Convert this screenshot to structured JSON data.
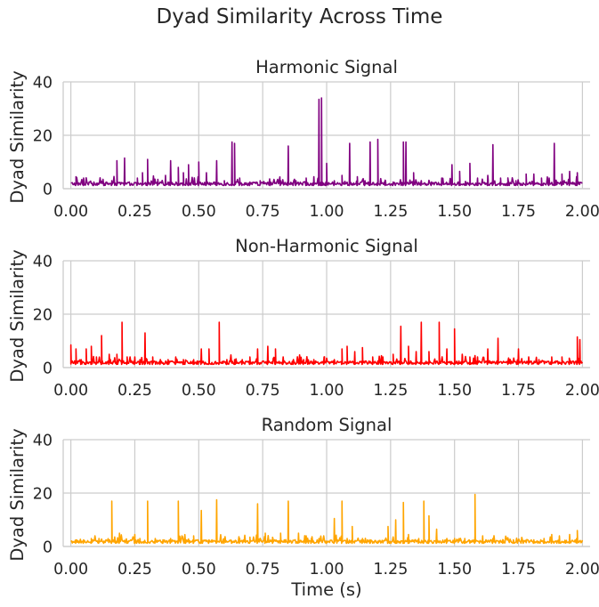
{
  "figure": {
    "title": "Dyad Similarity Across Time"
  },
  "chart_data": [
    {
      "type": "line",
      "title": "Harmonic Signal",
      "xlabel": "",
      "ylabel": "Dyad Similarity",
      "color": "#800080",
      "xlim": [
        -0.03,
        2.03
      ],
      "ylim": [
        0,
        40
      ],
      "xticks": [
        0.0,
        0.25,
        0.5,
        0.75,
        1.0,
        1.25,
        1.5,
        1.75,
        2.0
      ],
      "xtick_labels": [
        "0.00",
        "0.25",
        "0.50",
        "0.75",
        "1.00",
        "1.25",
        "1.50",
        "1.75",
        "2.00"
      ],
      "yticks": [
        0,
        20,
        40
      ],
      "ytick_labels": [
        "0",
        "20",
        "40"
      ],
      "grid": true,
      "baseline": 1.2,
      "peaks": [
        [
          0.02,
          4.5
        ],
        [
          0.05,
          4.0
        ],
        [
          0.09,
          2.5
        ],
        [
          0.13,
          2.0
        ],
        [
          0.16,
          3.0
        ],
        [
          0.18,
          10.5
        ],
        [
          0.21,
          11.5
        ],
        [
          0.26,
          4.0
        ],
        [
          0.28,
          6.0
        ],
        [
          0.3,
          11.0
        ],
        [
          0.34,
          3.5
        ],
        [
          0.37,
          5.0
        ],
        [
          0.39,
          10.5
        ],
        [
          0.42,
          8.0
        ],
        [
          0.44,
          6.0
        ],
        [
          0.46,
          9.0
        ],
        [
          0.5,
          10.0
        ],
        [
          0.53,
          6.0
        ],
        [
          0.57,
          10.5
        ],
        [
          0.6,
          3.0
        ],
        [
          0.63,
          17.5
        ],
        [
          0.64,
          17.0
        ],
        [
          0.66,
          4.0
        ],
        [
          0.7,
          2.5
        ],
        [
          0.74,
          3.0
        ],
        [
          0.78,
          2.5
        ],
        [
          0.82,
          3.0
        ],
        [
          0.85,
          16.0
        ],
        [
          0.88,
          3.0
        ],
        [
          0.92,
          4.0
        ],
        [
          0.95,
          4.5
        ],
        [
          0.97,
          33.5
        ],
        [
          0.98,
          34.0
        ],
        [
          1.0,
          9.5
        ],
        [
          1.03,
          3.0
        ],
        [
          1.06,
          5.0
        ],
        [
          1.09,
          17.0
        ],
        [
          1.12,
          4.5
        ],
        [
          1.15,
          3.0
        ],
        [
          1.17,
          17.5
        ],
        [
          1.2,
          18.5
        ],
        [
          1.23,
          3.0
        ],
        [
          1.26,
          2.0
        ],
        [
          1.3,
          17.5
        ],
        [
          1.31,
          17.5
        ],
        [
          1.34,
          6.0
        ],
        [
          1.37,
          3.0
        ],
        [
          1.41,
          2.5
        ],
        [
          1.45,
          4.0
        ],
        [
          1.49,
          9.0
        ],
        [
          1.52,
          6.5
        ],
        [
          1.56,
          9.5
        ],
        [
          1.59,
          4.0
        ],
        [
          1.63,
          5.0
        ],
        [
          1.65,
          16.5
        ],
        [
          1.68,
          4.0
        ],
        [
          1.71,
          3.0
        ],
        [
          1.74,
          3.0
        ],
        [
          1.78,
          5.5
        ],
        [
          1.81,
          5.5
        ],
        [
          1.84,
          4.0
        ],
        [
          1.87,
          4.0
        ],
        [
          1.89,
          17.0
        ],
        [
          1.92,
          5.5
        ],
        [
          1.95,
          6.5
        ],
        [
          1.98,
          6.0
        ]
      ]
    },
    {
      "type": "line",
      "title": "Non-Harmonic Signal",
      "xlabel": "",
      "ylabel": "Dyad Similarity",
      "color": "#ff0000",
      "xlim": [
        -0.03,
        2.03
      ],
      "ylim": [
        0,
        40
      ],
      "xticks": [
        0.0,
        0.25,
        0.5,
        0.75,
        1.0,
        1.25,
        1.5,
        1.75,
        2.0
      ],
      "xtick_labels": [
        "0.00",
        "0.25",
        "0.50",
        "0.75",
        "1.00",
        "1.25",
        "1.50",
        "1.75",
        "2.00"
      ],
      "yticks": [
        0,
        20,
        40
      ],
      "ytick_labels": [
        "0",
        "20",
        "40"
      ],
      "grid": true,
      "baseline": 1.2,
      "peaks": [
        [
          0.0,
          8.5
        ],
        [
          0.02,
          7.0
        ],
        [
          0.04,
          3.0
        ],
        [
          0.06,
          7.0
        ],
        [
          0.08,
          8.0
        ],
        [
          0.1,
          4.0
        ],
        [
          0.12,
          12.0
        ],
        [
          0.15,
          5.0
        ],
        [
          0.18,
          5.0
        ],
        [
          0.2,
          17.0
        ],
        [
          0.22,
          4.0
        ],
        [
          0.25,
          4.0
        ],
        [
          0.27,
          3.0
        ],
        [
          0.29,
          13.0
        ],
        [
          0.32,
          4.0
        ],
        [
          0.35,
          3.0
        ],
        [
          0.38,
          3.0
        ],
        [
          0.41,
          4.0
        ],
        [
          0.44,
          3.0
        ],
        [
          0.48,
          3.0
        ],
        [
          0.51,
          7.0
        ],
        [
          0.54,
          7.0
        ],
        [
          0.58,
          17.0
        ],
        [
          0.61,
          3.0
        ],
        [
          0.64,
          3.0
        ],
        [
          0.67,
          3.0
        ],
        [
          0.7,
          4.0
        ],
        [
          0.73,
          7.0
        ],
        [
          0.77,
          8.0
        ],
        [
          0.8,
          7.0
        ],
        [
          0.83,
          4.0
        ],
        [
          0.87,
          3.0
        ],
        [
          0.91,
          3.0
        ],
        [
          0.95,
          3.0
        ],
        [
          0.99,
          4.0
        ],
        [
          1.03,
          3.0
        ],
        [
          1.06,
          7.0
        ],
        [
          1.08,
          8.0
        ],
        [
          1.11,
          6.0
        ],
        [
          1.14,
          7.5
        ],
        [
          1.18,
          4.0
        ],
        [
          1.22,
          4.0
        ],
        [
          1.26,
          5.0
        ],
        [
          1.29,
          15.5
        ],
        [
          1.32,
          8.0
        ],
        [
          1.35,
          6.0
        ],
        [
          1.37,
          17.0
        ],
        [
          1.4,
          6.0
        ],
        [
          1.44,
          17.0
        ],
        [
          1.47,
          7.0
        ],
        [
          1.5,
          14.5
        ],
        [
          1.53,
          5.0
        ],
        [
          1.56,
          4.0
        ],
        [
          1.59,
          4.0
        ],
        [
          1.63,
          7.0
        ],
        [
          1.67,
          11.0
        ],
        [
          1.71,
          3.0
        ],
        [
          1.75,
          7.0
        ],
        [
          1.79,
          4.0
        ],
        [
          1.83,
          3.0
        ],
        [
          1.88,
          4.0
        ],
        [
          1.92,
          4.0
        ],
        [
          1.95,
          3.0
        ],
        [
          1.98,
          11.5
        ],
        [
          1.99,
          10.5
        ]
      ]
    },
    {
      "type": "line",
      "title": "Random Signal",
      "xlabel": "Time (s)",
      "ylabel": "Dyad Similarity",
      "color": "#ffa500",
      "xlim": [
        -0.03,
        2.03
      ],
      "ylim": [
        0,
        40
      ],
      "xticks": [
        0.0,
        0.25,
        0.5,
        0.75,
        1.0,
        1.25,
        1.5,
        1.75,
        2.0
      ],
      "xtick_labels": [
        "0.00",
        "0.25",
        "0.50",
        "0.75",
        "1.00",
        "1.25",
        "1.50",
        "1.75",
        "2.00"
      ],
      "yticks": [
        0,
        20,
        40
      ],
      "ytick_labels": [
        "0",
        "20",
        "40"
      ],
      "grid": true,
      "baseline": 1.2,
      "peaks": [
        [
          0.02,
          2.0
        ],
        [
          0.05,
          2.5
        ],
        [
          0.08,
          3.0
        ],
        [
          0.11,
          3.0
        ],
        [
          0.13,
          2.0
        ],
        [
          0.16,
          17.0
        ],
        [
          0.19,
          5.0
        ],
        [
          0.22,
          2.0
        ],
        [
          0.25,
          4.5
        ],
        [
          0.27,
          3.0
        ],
        [
          0.3,
          17.0
        ],
        [
          0.33,
          3.0
        ],
        [
          0.36,
          2.5
        ],
        [
          0.39,
          3.0
        ],
        [
          0.42,
          17.0
        ],
        [
          0.45,
          2.5
        ],
        [
          0.48,
          4.0
        ],
        [
          0.51,
          13.5
        ],
        [
          0.54,
          2.5
        ],
        [
          0.57,
          17.5
        ],
        [
          0.6,
          3.0
        ],
        [
          0.63,
          2.0
        ],
        [
          0.66,
          3.0
        ],
        [
          0.7,
          3.5
        ],
        [
          0.73,
          16.0
        ],
        [
          0.76,
          5.0
        ],
        [
          0.79,
          3.0
        ],
        [
          0.82,
          5.0
        ],
        [
          0.85,
          17.0
        ],
        [
          0.89,
          5.0
        ],
        [
          0.92,
          4.0
        ],
        [
          0.94,
          3.0
        ],
        [
          0.97,
          3.0
        ],
        [
          1.0,
          2.0
        ],
        [
          1.03,
          10.5
        ],
        [
          1.06,
          17.0
        ],
        [
          1.08,
          3.0
        ],
        [
          1.1,
          7.5
        ],
        [
          1.14,
          3.0
        ],
        [
          1.17,
          2.5
        ],
        [
          1.2,
          2.0
        ],
        [
          1.24,
          7.5
        ],
        [
          1.27,
          10.0
        ],
        [
          1.3,
          16.5
        ],
        [
          1.32,
          4.5
        ],
        [
          1.36,
          3.0
        ],
        [
          1.38,
          17.0
        ],
        [
          1.4,
          11.5
        ],
        [
          1.43,
          6.5
        ],
        [
          1.47,
          3.0
        ],
        [
          1.5,
          3.0
        ],
        [
          1.54,
          3.0
        ],
        [
          1.58,
          19.5
        ],
        [
          1.61,
          4.0
        ],
        [
          1.65,
          3.0
        ],
        [
          1.69,
          2.5
        ],
        [
          1.73,
          2.5
        ],
        [
          1.77,
          2.0
        ],
        [
          1.81,
          2.5
        ],
        [
          1.85,
          3.0
        ],
        [
          1.88,
          4.5
        ],
        [
          1.91,
          4.0
        ],
        [
          1.95,
          4.5
        ],
        [
          1.98,
          6.0
        ]
      ]
    }
  ]
}
